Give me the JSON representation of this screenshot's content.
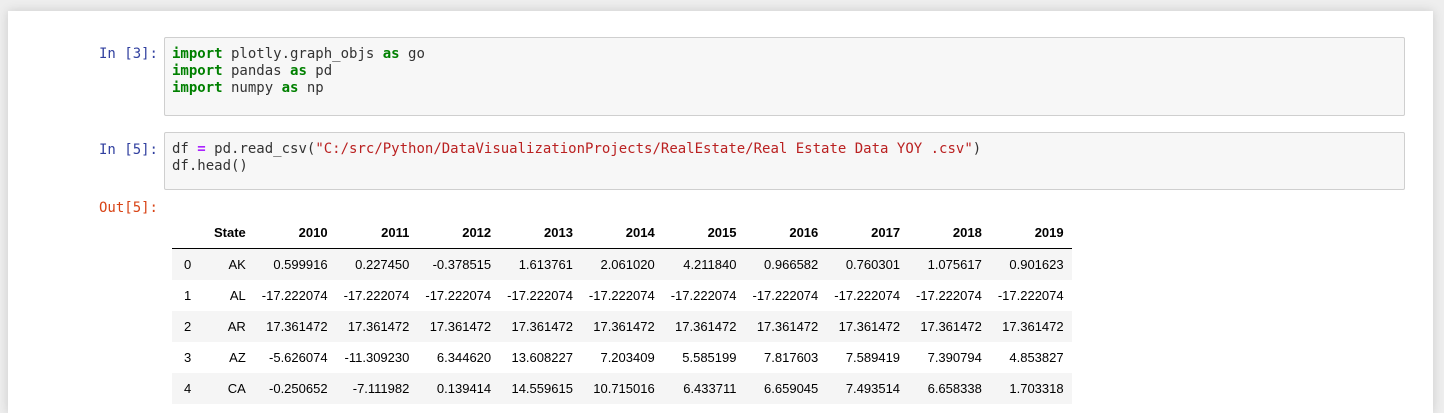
{
  "cells": [
    {
      "prompt": "In [3]:",
      "code": [
        [
          {
            "t": "import",
            "c": "kw"
          },
          {
            "t": " plotly.graph_objs ",
            "c": ""
          },
          {
            "t": "as",
            "c": "kw"
          },
          {
            "t": " go",
            "c": ""
          }
        ],
        [
          {
            "t": "import",
            "c": "kw"
          },
          {
            "t": " pandas ",
            "c": ""
          },
          {
            "t": "as",
            "c": "kw"
          },
          {
            "t": " pd",
            "c": ""
          }
        ],
        [
          {
            "t": "import",
            "c": "kw"
          },
          {
            "t": " numpy ",
            "c": ""
          },
          {
            "t": "as",
            "c": "kw"
          },
          {
            "t": " np",
            "c": ""
          }
        ]
      ]
    },
    {
      "prompt": "In [5]:",
      "code": [
        [
          {
            "t": "df ",
            "c": ""
          },
          {
            "t": "=",
            "c": "op"
          },
          {
            "t": " pd.read_csv(",
            "c": ""
          },
          {
            "t": "\"C:/src/Python/DataVisualizationProjects/RealEstate/Real Estate Data YOY .csv\"",
            "c": "str"
          },
          {
            "t": ")",
            "c": ""
          }
        ],
        [
          {
            "t": "df.head()",
            "c": ""
          }
        ]
      ]
    }
  ],
  "output": {
    "prompt": "Out[5]:",
    "table": {
      "columns": [
        "State",
        "2010",
        "2011",
        "2012",
        "2013",
        "2014",
        "2015",
        "2016",
        "2017",
        "2018",
        "2019"
      ],
      "rows": [
        {
          "index": "0",
          "values": [
            "AK",
            "0.599916",
            "0.227450",
            "-0.378515",
            "1.613761",
            "2.061020",
            "4.211840",
            "0.966582",
            "0.760301",
            "1.075617",
            "0.901623"
          ]
        },
        {
          "index": "1",
          "values": [
            "AL",
            "-17.222074",
            "-17.222074",
            "-17.222074",
            "-17.222074",
            "-17.222074",
            "-17.222074",
            "-17.222074",
            "-17.222074",
            "-17.222074",
            "-17.222074"
          ]
        },
        {
          "index": "2",
          "values": [
            "AR",
            "17.361472",
            "17.361472",
            "17.361472",
            "17.361472",
            "17.361472",
            "17.361472",
            "17.361472",
            "17.361472",
            "17.361472",
            "17.361472"
          ]
        },
        {
          "index": "3",
          "values": [
            "AZ",
            "-5.626074",
            "-11.309230",
            "6.344620",
            "13.608227",
            "7.203409",
            "5.585199",
            "7.817603",
            "7.589419",
            "7.390794",
            "4.853827"
          ]
        },
        {
          "index": "4",
          "values": [
            "CA",
            "-0.250652",
            "-7.111982",
            "0.139414",
            "14.559615",
            "10.715016",
            "6.433711",
            "6.659045",
            "7.493514",
            "6.658338",
            "1.703318"
          ]
        }
      ]
    }
  },
  "colors": {
    "in_prompt": "#303f9f",
    "out_prompt": "#d84315",
    "keyword": "#008000",
    "operator": "#aa22ff",
    "string": "#ba2121"
  }
}
